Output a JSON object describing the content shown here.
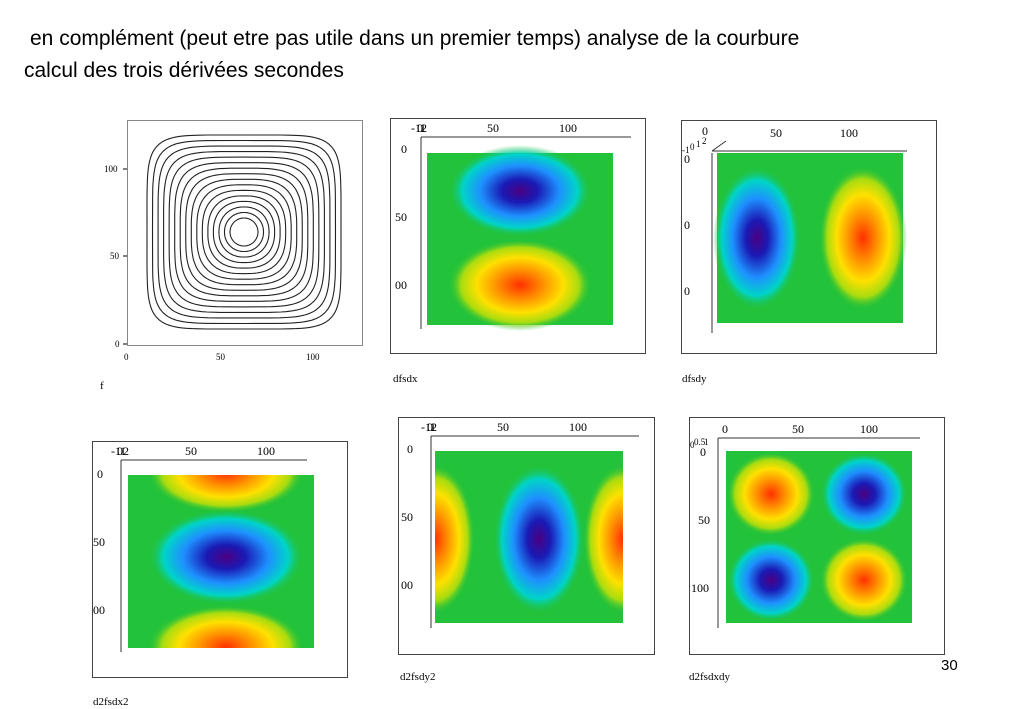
{
  "slide": {
    "line1": " en complément (peut etre pas utile dans un premier temps) analyse de la courbure",
    "line2": "calcul des trois dérivées secondes",
    "page_number": "30"
  },
  "colors": {
    "jet_stops": [
      "#4b0082",
      "#1a1ab4",
      "#1e90ff",
      "#00d4c8",
      "#22c23a",
      "#d8e600",
      "#ffb000",
      "#ff3000"
    ],
    "field_mid": "#22c23a",
    "contour_line": "#222222"
  },
  "panels": {
    "f": {
      "caption": "f",
      "y_ticks": [
        "100",
        "50",
        "0"
      ],
      "x_ticks": [
        "0",
        "50",
        "100"
      ],
      "contour_levels": 16
    },
    "dfsdx": {
      "caption": "dfsdx",
      "top_ticks": [
        "-1",
        "0",
        "1",
        "2",
        "50",
        "100"
      ],
      "left_ticks": [
        "0",
        "50",
        "00"
      ]
    },
    "dfsdy": {
      "caption": "dfsdy",
      "top_ticks": [
        "0",
        "50",
        "100"
      ],
      "corner_ticks": [
        "-1",
        "0",
        "1",
        "2"
      ],
      "left_ticks": [
        "0",
        "0",
        "0"
      ]
    },
    "d2fsdx2": {
      "caption": "d2fsdx2",
      "top_ticks": [
        "-1",
        "0",
        "1",
        "2",
        "50",
        "100"
      ],
      "left_ticks": [
        "0",
        "50",
        "00"
      ]
    },
    "d2fsdy2": {
      "caption": "d2fsdy2",
      "top_ticks": [
        "-1",
        "0",
        "1",
        "2",
        "50",
        "100"
      ],
      "left_ticks": [
        "0",
        "50",
        "00"
      ]
    },
    "d2fsdxdy": {
      "caption": "d2fsdxdy",
      "top_ticks": [
        "0",
        "50",
        "100"
      ],
      "corner_ticks": [
        "0",
        "0.5",
        "1"
      ],
      "left_ticks": [
        "0",
        "50",
        "100"
      ]
    }
  }
}
